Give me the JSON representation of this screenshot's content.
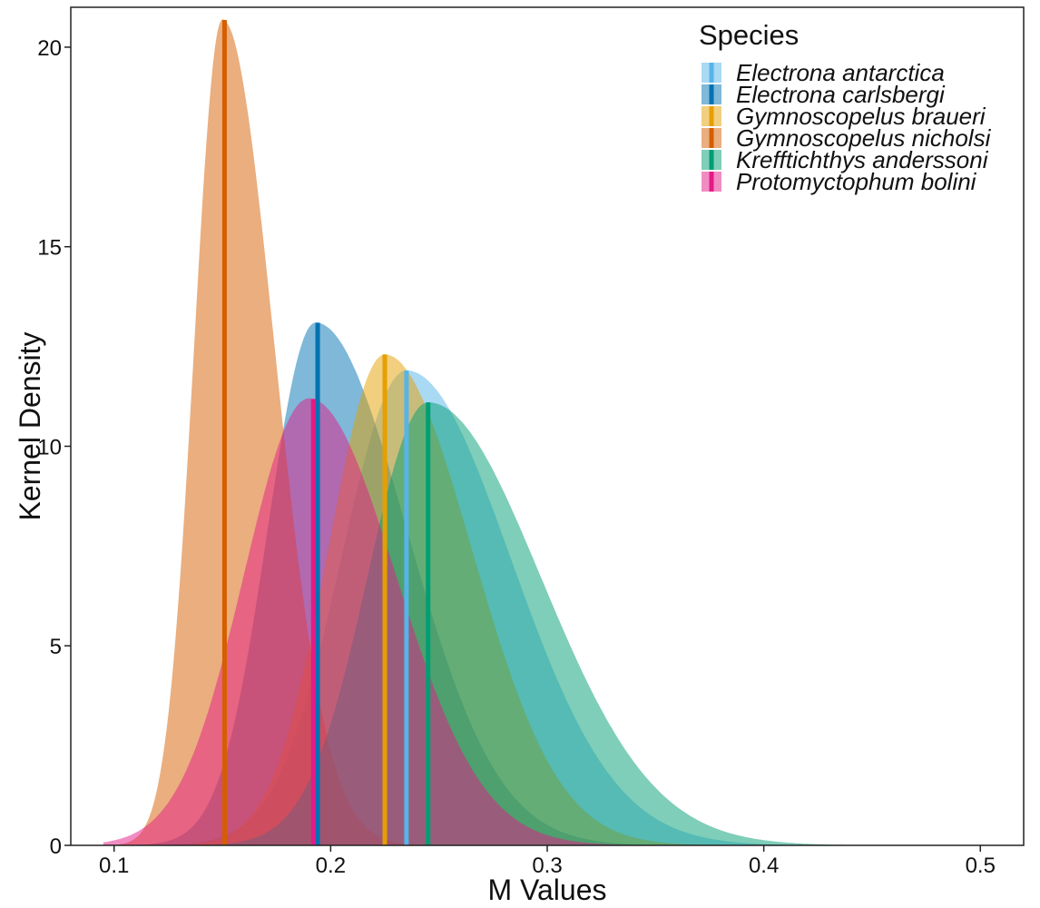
{
  "chart_data": {
    "type": "area",
    "title": "",
    "xlabel": "M Values",
    "ylabel": "Kernel Density",
    "xlim": [
      0.08,
      0.52
    ],
    "ylim": [
      0,
      21
    ],
    "x_ticks": [
      0.1,
      0.2,
      0.3,
      0.4,
      0.5
    ],
    "y_ticks": [
      0,
      5,
      10,
      15,
      20
    ],
    "grid": false,
    "legend": {
      "title": "Species",
      "position": "top-right"
    },
    "series": [
      {
        "name": "Electrona antarctica",
        "color": "#56B4E9",
        "mode": 0.235,
        "peak": 11.9,
        "sd_left": 0.03,
        "sd_right": 0.048,
        "median": 0.235
      },
      {
        "name": "Electrona carlsbergi",
        "color": "#0072B2",
        "mode": 0.193,
        "peak": 13.1,
        "sd_left": 0.022,
        "sd_right": 0.042,
        "median": 0.194
      },
      {
        "name": "Gymnoscopelus braueri",
        "color": "#E69F00",
        "mode": 0.225,
        "peak": 12.3,
        "sd_left": 0.026,
        "sd_right": 0.04,
        "median": 0.225
      },
      {
        "name": "Gymnoscopelus nicholsi",
        "color": "#D55E00",
        "mode": 0.15,
        "peak": 20.7,
        "sd_left": 0.013,
        "sd_right": 0.024,
        "median": 0.151
      },
      {
        "name": "Krefftichthys anderssoni",
        "color": "#009E73",
        "mode": 0.245,
        "peak": 11.1,
        "sd_left": 0.028,
        "sd_right": 0.052,
        "median": 0.245
      },
      {
        "name": "Protomyctophum bolini",
        "color": "#E41A87",
        "mode": 0.19,
        "peak": 11.2,
        "sd_left": 0.03,
        "sd_right": 0.04,
        "median": 0.192
      }
    ]
  }
}
